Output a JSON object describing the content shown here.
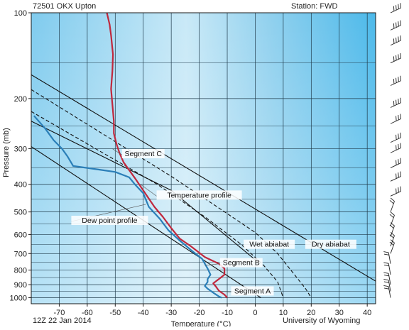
{
  "header": {
    "station_id": "72501 OKX Upton",
    "station_name": "Station: FWD",
    "time": "12Z 22 Jan 2014",
    "source": "University of Wyoming"
  },
  "chart_data": {
    "type": "line",
    "title": "",
    "xlabel": "Temperature (°C)",
    "ylabel": "Pressure (mb)",
    "x_ticks": [
      -70,
      -60,
      -50,
      -40,
      -30,
      -20,
      -10,
      0,
      10,
      20,
      30,
      40
    ],
    "y_ticks": [
      100,
      200,
      300,
      400,
      500,
      600,
      700,
      800,
      900,
      1000
    ],
    "xlim": [
      -80,
      43
    ],
    "ylim": [
      1050,
      100
    ],
    "y_scale": "log",
    "grid": true,
    "series": [
      {
        "name": "Temperature profile",
        "color": "#c0283d",
        "points": [
          [
            -53,
            100
          ],
          [
            -52,
            110
          ],
          [
            -51.5,
            120
          ],
          [
            -50.8,
            140
          ],
          [
            -51,
            160
          ],
          [
            -51.5,
            185
          ],
          [
            -51,
            210
          ],
          [
            -50.5,
            240
          ],
          [
            -50.5,
            265
          ],
          [
            -49.5,
            290
          ],
          [
            -48.5,
            310
          ],
          [
            -47,
            335
          ],
          [
            -43,
            380
          ],
          [
            -40,
            420
          ],
          [
            -36,
            480
          ],
          [
            -33,
            520
          ],
          [
            -30,
            570
          ],
          [
            -27,
            620
          ],
          [
            -23,
            660
          ],
          [
            -18,
            720
          ],
          [
            -13,
            760
          ],
          [
            -11,
            790
          ],
          [
            -11,
            830
          ],
          [
            -13,
            860
          ],
          [
            -15,
            890
          ],
          [
            -14,
            915
          ],
          [
            -13,
            945
          ],
          [
            -11,
            975
          ],
          [
            -10,
            1000
          ]
        ]
      },
      {
        "name": "Dew point profile",
        "color": "#2b7fb8",
        "points": [
          [
            -79,
            230
          ],
          [
            -75,
            255
          ],
          [
            -72,
            280
          ],
          [
            -69,
            300
          ],
          [
            -67,
            320
          ],
          [
            -65,
            345
          ],
          [
            -56,
            355
          ],
          [
            -50,
            362
          ],
          [
            -45,
            378
          ],
          [
            -43,
            400
          ],
          [
            -40,
            430
          ],
          [
            -38,
            480
          ],
          [
            -34,
            530
          ],
          [
            -31,
            580
          ],
          [
            -27,
            630
          ],
          [
            -23,
            680
          ],
          [
            -19,
            730
          ],
          [
            -17,
            790
          ],
          [
            -16,
            830
          ],
          [
            -17,
            860
          ],
          [
            -17,
            880
          ],
          [
            -18,
            910
          ],
          [
            -17,
            930
          ],
          [
            -15,
            960
          ],
          [
            -13,
            990
          ],
          [
            -12,
            1000
          ]
        ]
      }
    ],
    "reference_lines": [
      {
        "name": "Dry abiabat",
        "style": "solid",
        "points": [
          [
            -80,
            165
          ],
          [
            43,
            875
          ]
        ]
      },
      {
        "name": "Wet abiabat",
        "style": "dashed",
        "points": [
          [
            -80,
            186
          ],
          [
            -30,
            375
          ],
          [
            -15,
            470
          ],
          [
            0,
            590
          ],
          [
            8,
            700
          ],
          [
            14,
            830
          ],
          [
            18,
            930
          ],
          [
            20,
            1000
          ]
        ]
      },
      {
        "name": "",
        "style": "dashed",
        "points": [
          [
            -80,
            222
          ],
          [
            -35,
            400
          ],
          [
            -18,
            520
          ],
          [
            -5,
            650
          ],
          [
            3,
            770
          ],
          [
            8,
            880
          ],
          [
            10,
            1000
          ]
        ]
      },
      {
        "name": "",
        "style": "solid",
        "points": [
          [
            -80,
            295
          ],
          [
            2,
            1000
          ]
        ]
      },
      {
        "name": "",
        "style": "solid",
        "points": [
          [
            -80,
            240
          ],
          [
            -30,
            420
          ],
          [
            1,
            750
          ]
        ]
      }
    ],
    "annotations": [
      {
        "text": "Segment C",
        "at": [
          -40,
          315
        ]
      },
      {
        "text": "Temperature profile",
        "at": [
          -20,
          440
        ]
      },
      {
        "text": "Dew point profile",
        "at": [
          -52,
          540
        ]
      },
      {
        "text": "Wet abiabat",
        "at": [
          5,
          655
        ]
      },
      {
        "text": "Dry abiabat",
        "at": [
          27,
          655
        ]
      },
      {
        "text": "Segment B",
        "at": [
          -5,
          760
        ]
      },
      {
        "text": "Segment A",
        "at": [
          -1,
          955
        ]
      }
    ]
  },
  "wind_barbs": {
    "icon": "wind-barb-icon",
    "levels": [
      100,
      115,
      130,
      150,
      180,
      215,
      245,
      285,
      310,
      350,
      390,
      440,
      500,
      560,
      610,
      660,
      700,
      760,
      830,
      900,
      950,
      1000
    ]
  }
}
